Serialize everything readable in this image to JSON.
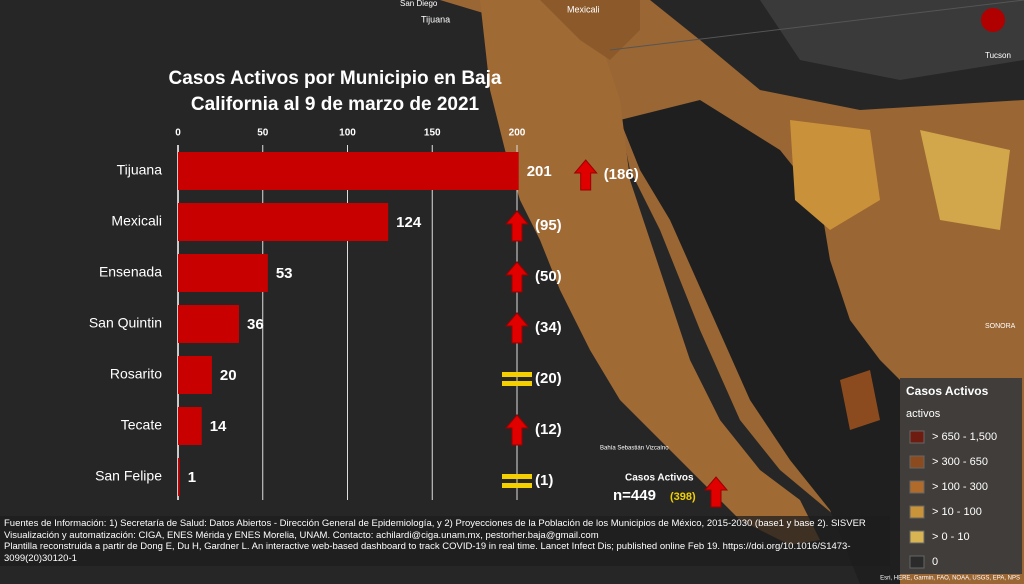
{
  "chart_data": {
    "type": "bar",
    "orientation": "horizontal",
    "title": "Casos Activos por Municipio en Baja California al 9 de marzo de 2021",
    "categories": [
      "Tijuana",
      "Mexicali",
      "Ensenada",
      "San Quintin",
      "Rosarito",
      "Tecate",
      "San Felipe"
    ],
    "values": [
      201,
      124,
      53,
      36,
      20,
      14,
      1
    ],
    "color": "#c80000",
    "xlim": [
      0,
      200
    ],
    "xticks": [
      0,
      50,
      100,
      150,
      200
    ],
    "grid": true,
    "previous": {
      "values": [
        186,
        95,
        50,
        34,
        20,
        12,
        1
      ],
      "value_labels": [
        "(186)",
        "(95)",
        "(50)",
        "(34)",
        "(20)",
        "(12)",
        "(1)"
      ],
      "trend": [
        "up",
        "up",
        "up",
        "up",
        "equal",
        "up",
        "equal"
      ]
    }
  },
  "summary": {
    "title": "Casos Activos",
    "value": 449,
    "value_label": "n=449",
    "previous": 398,
    "previous_label": "(398)",
    "trend": "up"
  },
  "legend": {
    "title": "Casos Activos",
    "subtitle": "activos",
    "items": [
      {
        "label": "> 650 - 1,500",
        "color": "#6e1b10"
      },
      {
        "label": "> 300 - 650",
        "color": "#8c4a1f"
      },
      {
        "label": "> 100 - 300",
        "color": "#b06b2b"
      },
      {
        "label": "> 10 - 100",
        "color": "#c99339"
      },
      {
        "label": "> 0 - 10",
        "color": "#d8b552"
      },
      {
        "label": "0",
        "color": "#2b2b2b"
      }
    ]
  },
  "map_labels": [
    "San Diego",
    "Tijuana",
    "Mexicali",
    "Tucson",
    "SONORA",
    "Bahía Sebastián Vizcaíno"
  ],
  "attribution": "Esri, HERE, Garmin, FAO, NOAA, USGS, EPA, NPS",
  "footer": [
    "Fuentes de Información: 1) Secretaría de Salud: Datos Abiertos - Dirección General de Epidemiología, y 2) Proyecciones de la Población de los Municipios de México, 2015-2030 (base1 y base 2). SISVER",
    "Visualización y automatización: CIGA, ENES Mérida y ENES Morelia, UNAM. Contacto: achilardi@ciga.unam.mx, pestorher.baja@gmail.com",
    "Plantilla reconstruida a partir de Dong E, Du H, Gardner L. An interactive web-based dashboard to track COVID-19 in real time. Lancet Infect Dis; published online Feb 19. https://doi.org/10.1016/S1473-3099(20)30120-1"
  ]
}
